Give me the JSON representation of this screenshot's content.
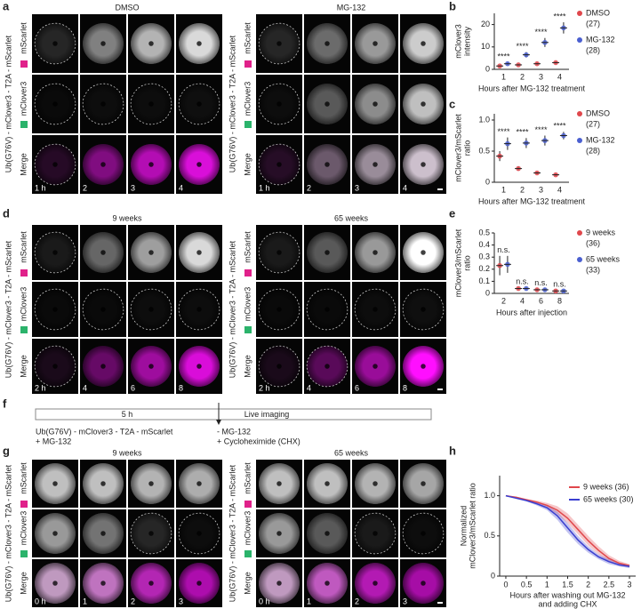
{
  "panel_labels": [
    "a",
    "b",
    "c",
    "d",
    "e",
    "f",
    "g",
    "h"
  ],
  "construct": "Ub(G76V) - mClover3 - T2A - mScarlet",
  "channels": [
    "mScarlet",
    "mClover3",
    "Merge"
  ],
  "image_panels": [
    {
      "groups": [
        {
          "title": "DMSO",
          "times": [
            "1 h",
            "2",
            "3",
            "4"
          ]
        },
        {
          "title": "MG-132",
          "times": [
            "1 h",
            "2",
            "3",
            "4"
          ]
        }
      ]
    },
    {
      "groups": [
        {
          "title": "9 weeks",
          "times": [
            "2 h",
            "4",
            "6",
            "8"
          ]
        },
        {
          "title": "65 weeks",
          "times": [
            "2 h",
            "4",
            "6",
            "8"
          ]
        }
      ]
    },
    {
      "groups": [
        {
          "title": "9 weeks",
          "times": [
            "0 h",
            "1",
            "2",
            "3"
          ]
        },
        {
          "title": "65 weeks",
          "times": [
            "0 h",
            "1",
            "2",
            "3"
          ]
        }
      ]
    }
  ],
  "timeline": {
    "phase1": "5 h",
    "phase2": "Live imaging",
    "pre_treatment": [
      "Ub(G76V) - mClover3 - T2A - mScarlet",
      "+ MG-132"
    ],
    "post_treatment": [
      "- MG-132",
      "+ Cycloheximide (CHX)"
    ]
  },
  "chart_data": [
    {
      "type": "dot",
      "y_label": [
        "mClover3",
        "intensity"
      ],
      "x_label": "Hours after MG-132 treatment",
      "categories": [
        "1",
        "2",
        "3",
        "4"
      ],
      "ylim": [
        0,
        25
      ],
      "yticks": [
        0,
        10,
        20
      ],
      "annotations": [
        "****",
        "****",
        "****",
        "****"
      ],
      "series": [
        {
          "name": "DMSO",
          "n_label": "(27)",
          "color": "#e0474c",
          "values": [
            1.5,
            2,
            2.5,
            3
          ],
          "errors": [
            0.3,
            0.4,
            0.5,
            0.5
          ]
        },
        {
          "name": "MG-132",
          "n_label": "(28)",
          "color": "#4a5fd0",
          "values": [
            2.5,
            6.5,
            12,
            18.5
          ],
          "errors": [
            0.6,
            1.2,
            2,
            2.5
          ]
        }
      ]
    },
    {
      "type": "dot",
      "y_label": [
        "mClover3/mScarlet",
        "ratio"
      ],
      "x_label": "Hours after MG-132 treatment",
      "categories": [
        "1",
        "2",
        "3",
        "4"
      ],
      "ylim": [
        0,
        1.1
      ],
      "yticks": [
        0,
        0.5,
        {
          "value": 1,
          "label": "1.0"
        }
      ],
      "annotations": [
        "****",
        "****",
        "****",
        "****"
      ],
      "series": [
        {
          "name": "DMSO",
          "n_label": "(27)",
          "color": "#e0474c",
          "values": [
            0.42,
            0.22,
            0.15,
            0.12
          ],
          "errors": [
            0.08,
            0.03,
            0.02,
            0.02
          ]
        },
        {
          "name": "MG-132",
          "n_label": "(28)",
          "color": "#4a5fd0",
          "values": [
            0.62,
            0.63,
            0.67,
            0.75
          ],
          "errors": [
            0.1,
            0.08,
            0.08,
            0.06
          ]
        }
      ]
    },
    {
      "type": "dot",
      "y_label": [
        "mClover3/mScarlet",
        "ratio"
      ],
      "x_label": "Hours after injection",
      "categories": [
        "2",
        "4",
        "6",
        "8"
      ],
      "ylim": [
        0,
        0.5
      ],
      "yticks": [
        0,
        0.1,
        0.2,
        0.3,
        0.4,
        0.5
      ],
      "annotations": [
        "n.s.",
        "n.s.",
        "n.s.",
        "n.s."
      ],
      "series": [
        {
          "name": "9 weeks",
          "n_label": "(36)",
          "color": "#e0474c",
          "values": [
            0.23,
            0.04,
            0.03,
            0.02
          ],
          "errors": [
            0.08,
            0.01,
            0.01,
            0.01
          ]
        },
        {
          "name": "65 weeks",
          "n_label": "(33)",
          "color": "#4a5fd0",
          "values": [
            0.24,
            0.04,
            0.03,
            0.02
          ],
          "errors": [
            0.07,
            0.01,
            0.01,
            0.01
          ]
        }
      ]
    },
    {
      "type": "line",
      "y_label": [
        "Normalized",
        "mClover3/mScarlet ratio"
      ],
      "x_label": [
        "Hours after washing out MG-132",
        "and adding CHX"
      ],
      "x": [
        0,
        0.25,
        0.5,
        0.75,
        1,
        1.25,
        1.5,
        1.75,
        2,
        2.25,
        2.5,
        2.75,
        3
      ],
      "xlim": [
        -0.15,
        3.15
      ],
      "xticks": [
        0,
        0.5,
        1,
        1.5,
        2,
        2.5,
        3
      ],
      "ylim": [
        0,
        1.25
      ],
      "yticks": [
        0,
        0.5,
        {
          "value": 1,
          "label": "1.0"
        }
      ],
      "series": [
        {
          "name": "9 weeks (36)",
          "color": "#e0474c",
          "values": [
            1.0,
            0.98,
            0.95,
            0.92,
            0.88,
            0.82,
            0.72,
            0.58,
            0.44,
            0.32,
            0.22,
            0.16,
            0.13
          ],
          "errors": [
            0,
            0.01,
            0.01,
            0.02,
            0.03,
            0.05,
            0.06,
            0.06,
            0.06,
            0.05,
            0.04,
            0.03,
            0.02
          ]
        },
        {
          "name": "65 weeks (30)",
          "color": "#3a3fd0",
          "values": [
            1.0,
            0.97,
            0.94,
            0.9,
            0.85,
            0.75,
            0.6,
            0.45,
            0.33,
            0.24,
            0.18,
            0.14,
            0.12
          ],
          "errors": [
            0,
            0.01,
            0.01,
            0.02,
            0.03,
            0.05,
            0.06,
            0.05,
            0.04,
            0.03,
            0.03,
            0.02,
            0.02
          ]
        }
      ]
    }
  ]
}
